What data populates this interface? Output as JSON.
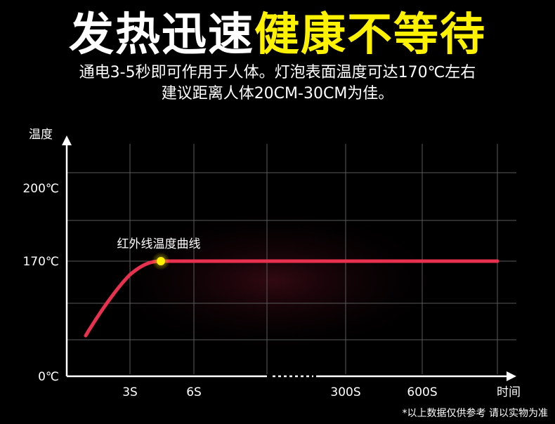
{
  "headline": {
    "part_white": "发热迅速",
    "part_yellow": "健康不等待"
  },
  "subtitle": {
    "line1": "通电3-5秒即可作用于人体。灯泡表面温度可达170℃左右",
    "line2": "建议距离人体20CM-30CM为佳。"
  },
  "colors": {
    "background": "#000000",
    "headline_accent": "#fff200",
    "curve": "#e8304f",
    "marker": "#fff200",
    "grid": "#5a5a5a"
  },
  "chart_data": {
    "type": "line",
    "ylabel": "温度",
    "xlabel": "时间",
    "y_ticks": [
      "200℃",
      "170℃",
      "0℃"
    ],
    "y_tick_values": [
      200,
      170,
      0
    ],
    "x_ticks": [
      "3S",
      "6S",
      "300S",
      "600S"
    ],
    "x_axis_break": true,
    "annotation": "红外线温度曲线",
    "series": [
      {
        "points": [
          {
            "x": "0S",
            "y": 60
          },
          {
            "x": "3S",
            "y": 150
          },
          {
            "x": "4S",
            "y": 170
          },
          {
            "x": "6S",
            "y": 170
          },
          {
            "x": "300S",
            "y": 170
          },
          {
            "x": "600S",
            "y": 170
          },
          {
            "x": "end",
            "y": 170
          }
        ]
      }
    ],
    "highlight_point": {
      "x": "4S",
      "y": 170
    },
    "grid": true
  },
  "footnote": "*以上数据仅供参考 请以实物为准"
}
